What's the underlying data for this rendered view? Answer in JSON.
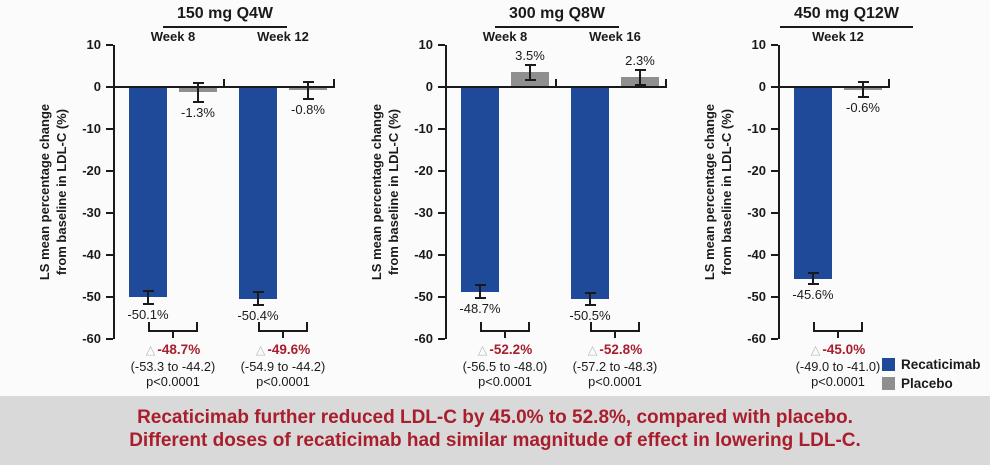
{
  "colors": {
    "recaticimab": "#1E4A99",
    "placebo": "#8F8F8F",
    "diff_red": "#A91E2C",
    "caption_red": "#A91E2C",
    "caption_bg": "#D9D9D9",
    "axis": "#1A1A1A"
  },
  "legend": {
    "items": [
      {
        "label": "Recaticimab",
        "color_key": "recaticimab"
      },
      {
        "label": "Placebo",
        "color_key": "placebo"
      }
    ]
  },
  "caption": {
    "line1": "Recaticimab further reduced LDL-C by 45.0% to 52.8%, compared with placebo.",
    "line2": "Different doses of recaticimab had similar magnitude of effect in lowering LDL-C."
  },
  "chart_data": {
    "type": "bar",
    "ylabel_lines": [
      "LS mean percentage change",
      "from baseline in LDL-C (%)"
    ],
    "ylim": [
      -60,
      10
    ],
    "yticks": [
      10,
      0,
      -10,
      -20,
      -30,
      -40,
      -50,
      -60
    ],
    "grid": false,
    "legend_position": "bottom-right",
    "series_names": [
      "Recaticimab",
      "Placebo"
    ],
    "triangle_symbol": "△",
    "panels": [
      {
        "title": "150 mg Q4W",
        "groups": [
          {
            "week": "Week 8",
            "recaticimab": -50.1,
            "recaticimab_label": "-50.1%",
            "recaticimab_err": 1.6,
            "placebo": -1.3,
            "placebo_label": "-1.3%",
            "placebo_err": 2.2,
            "diff_label": "-48.7%",
            "ci": "(-53.3 to -44.2)",
            "p": "p<0.0001"
          },
          {
            "week": "Week 12",
            "recaticimab": -50.4,
            "recaticimab_label": "-50.4%",
            "recaticimab_err": 1.6,
            "placebo": -0.8,
            "placebo_label": "-0.8%",
            "placebo_err": 2.0,
            "diff_label": "-49.6%",
            "ci": "(-54.9 to -44.2)",
            "p": "p<0.0001"
          }
        ]
      },
      {
        "title": "300 mg Q8W",
        "groups": [
          {
            "week": "Week 8",
            "recaticimab": -48.7,
            "recaticimab_label": "-48.7%",
            "recaticimab_err": 1.5,
            "placebo": 3.5,
            "placebo_label": "3.5%",
            "placebo_err": 1.8,
            "diff_label": "-52.2%",
            "ci": "(-56.5 to -48.0)",
            "p": "p<0.0001"
          },
          {
            "week": "Week 16",
            "recaticimab": -50.5,
            "recaticimab_label": "-50.5%",
            "recaticimab_err": 1.4,
            "placebo": 2.3,
            "placebo_label": "2.3%",
            "placebo_err": 1.8,
            "diff_label": "-52.8%",
            "ci": "(-57.2 to -48.3)",
            "p": "p<0.0001"
          }
        ]
      },
      {
        "title": "450 mg Q12W",
        "groups": [
          {
            "week": "Week 12",
            "recaticimab": -45.6,
            "recaticimab_label": "-45.6%",
            "recaticimab_err": 1.4,
            "placebo": -0.6,
            "placebo_label": "-0.6%",
            "placebo_err": 1.8,
            "diff_label": "-45.0%",
            "ci": "(-49.0 to -41.0)",
            "p": "p<0.0001"
          }
        ]
      }
    ]
  }
}
